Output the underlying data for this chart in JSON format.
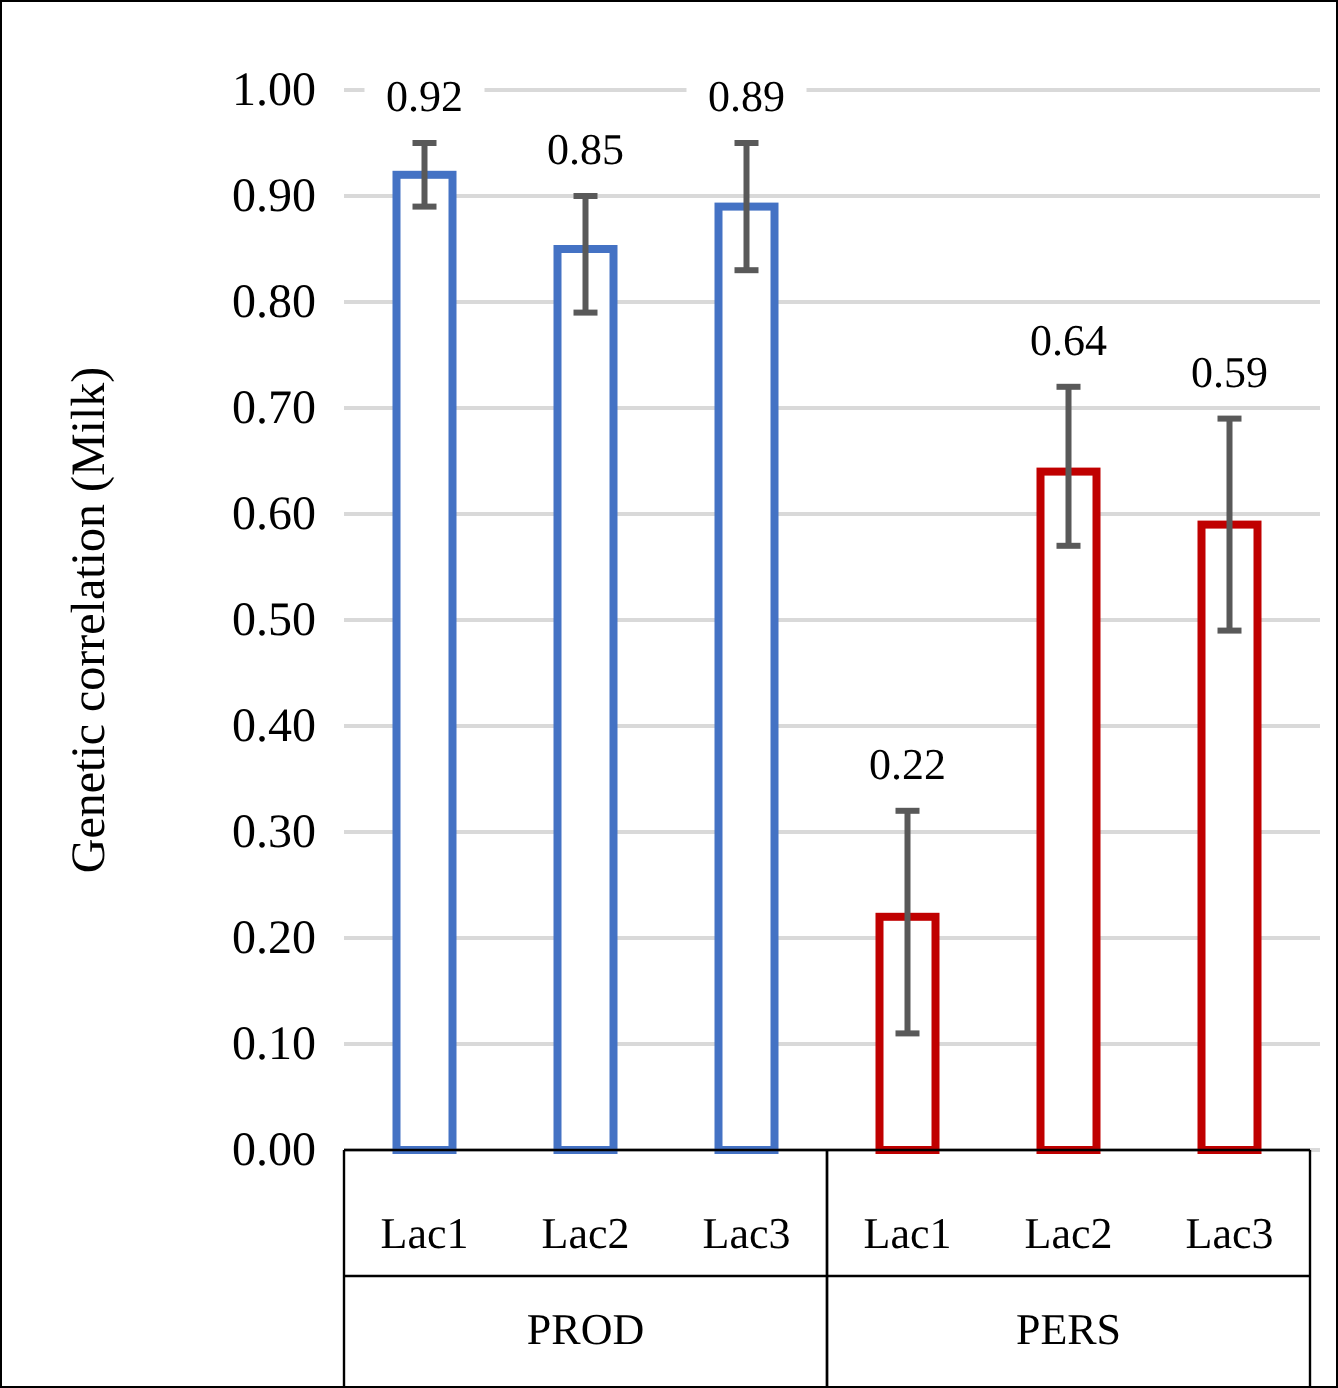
{
  "chart_data": {
    "type": "bar",
    "ylabel": "Genetic correlation (Milk)",
    "categories": [
      "Lac1",
      "Lac2",
      "Lac3",
      "Lac1",
      "Lac2",
      "Lac3"
    ],
    "series": [
      {
        "color": "#4472c4",
        "values": [
          0.92,
          0.85,
          0.89,
          null,
          null,
          null
        ],
        "errors": [
          [
            0.89,
            0.95
          ],
          [
            0.79,
            0.9
          ],
          [
            0.83,
            0.95
          ],
          null,
          null,
          null
        ]
      },
      {
        "color": "#c00000",
        "values": [
          null,
          null,
          null,
          0.22,
          0.64,
          0.59
        ],
        "errors": [
          null,
          null,
          null,
          [
            0.11,
            0.32
          ],
          [
            0.57,
            0.72
          ],
          [
            0.49,
            0.69
          ]
        ]
      }
    ],
    "ylim": [
      0,
      1
    ],
    "yticks": [
      {
        "value": 0,
        "label": "0.00"
      },
      {
        "value": 0.1,
        "label": "0.10"
      },
      {
        "value": 0.2,
        "label": "0.20"
      },
      {
        "value": 0.3,
        "label": "0.30"
      },
      {
        "value": 0.4,
        "label": "0.40"
      },
      {
        "value": 0.5,
        "label": "0.50"
      },
      {
        "value": 0.6,
        "label": "0.60"
      },
      {
        "value": 0.7,
        "label": "0.70"
      },
      {
        "value": 0.8,
        "label": "0.80"
      },
      {
        "value": 0.9,
        "label": "0.90"
      },
      {
        "value": 1,
        "label": "1.00"
      }
    ],
    "grid": "y",
    "data_labels": true,
    "annotations": [
      "PROD",
      "PERS"
    ]
  }
}
